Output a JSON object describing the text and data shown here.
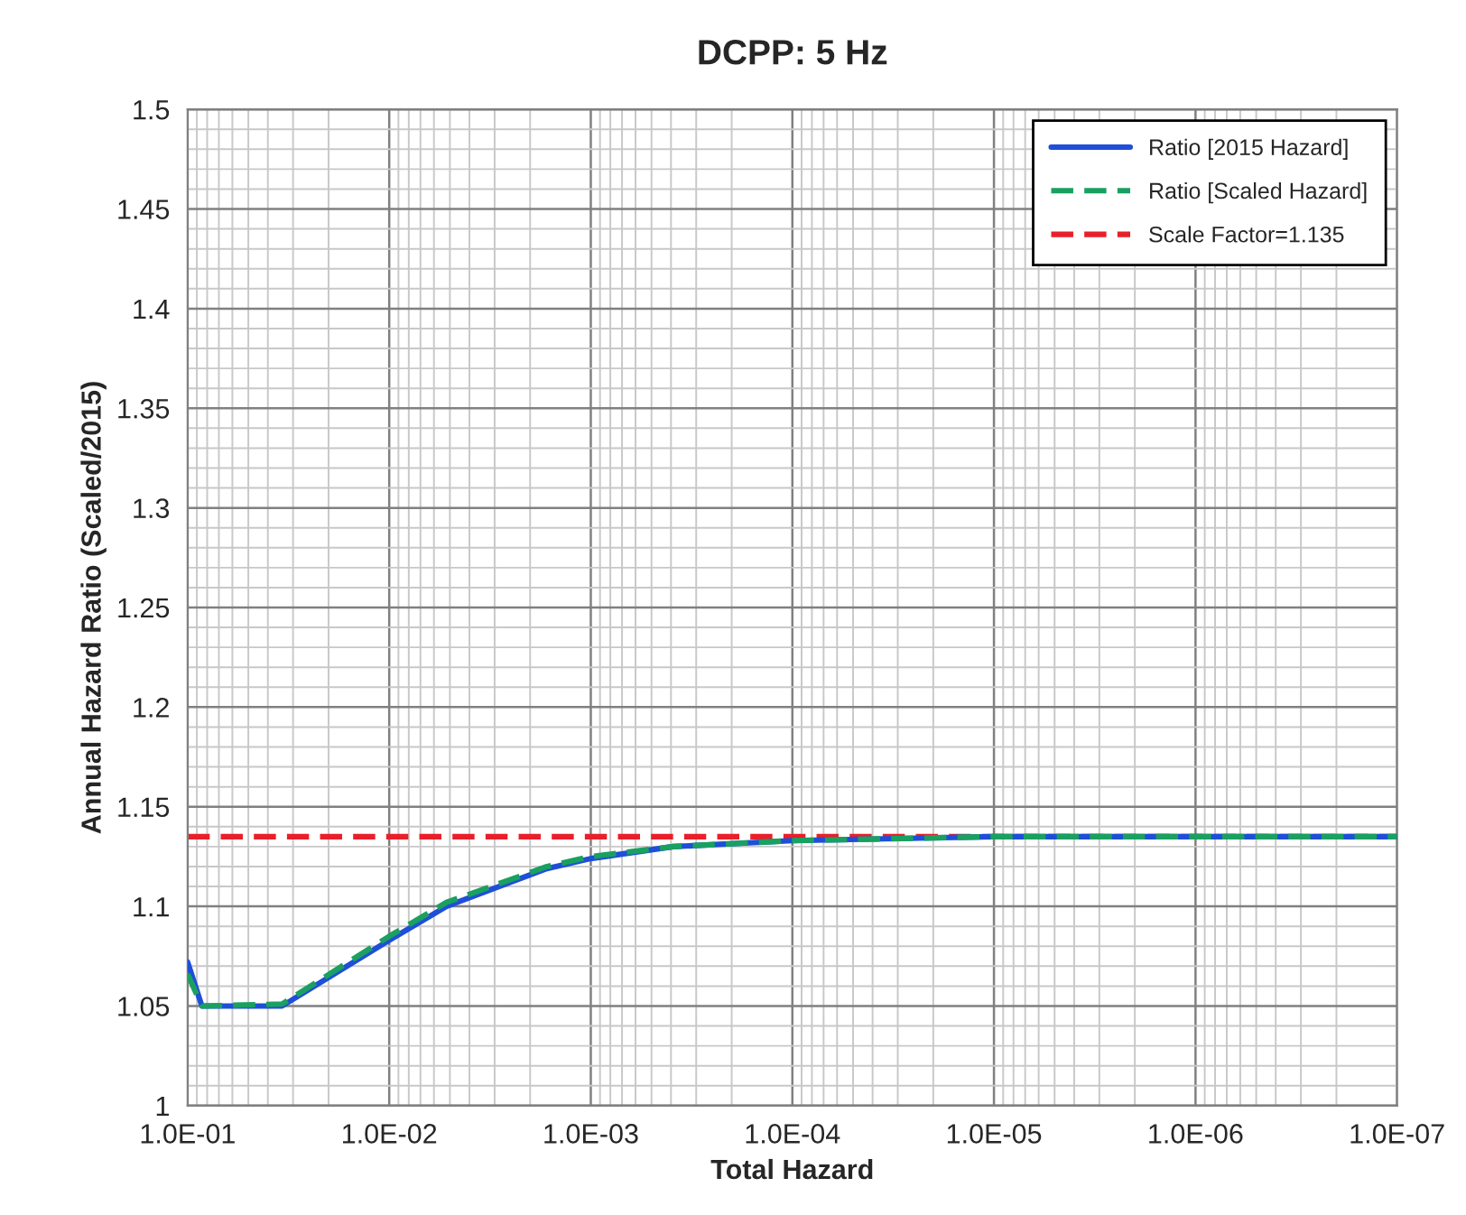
{
  "chart_data": {
    "type": "line",
    "title": "DCPP: 5 Hz",
    "xlabel": "Total Hazard",
    "ylabel": "Annual Hazard Ratio (Scaled/2015)",
    "log": "x",
    "grid": true,
    "legend": "top right",
    "xlim": [
      0.1,
      1e-07
    ],
    "xticks": [
      {
        "value": 0.1,
        "label": "1.0E-01"
      },
      {
        "value": 0.01,
        "label": "1.0E-02"
      },
      {
        "value": 0.001,
        "label": "1.0E-03"
      },
      {
        "value": 0.0001,
        "label": "1.0E-04"
      },
      {
        "value": 1e-05,
        "label": "1.0E-05"
      },
      {
        "value": 1e-06,
        "label": "1.0E-06"
      },
      {
        "value": 1e-07,
        "label": "1.0E-07"
      }
    ],
    "ylim": [
      1,
      1.5
    ],
    "yticks": [
      1,
      1.05,
      1.1,
      1.15,
      1.2,
      1.25,
      1.3,
      1.35,
      1.4,
      1.45,
      1.5
    ],
    "x": [
      0.1,
      0.085,
      0.034,
      0.01,
      0.0052,
      0.00165,
      0.001,
      0.00039,
      0.0001,
      1e-05,
      1e-07
    ],
    "series": [
      {
        "name": "Ratio [2015 Hazard]",
        "color": "#1f4fd8",
        "line_style": "solid",
        "values": [
          1.072,
          1.05,
          1.05,
          1.083,
          1.1,
          1.119,
          1.124,
          1.13,
          1.133,
          1.135,
          1.135
        ]
      },
      {
        "name": "Ratio [Scaled Hazard]",
        "color": "#1aa060",
        "line_style": "dashed",
        "values": [
          1.066,
          1.05,
          1.051,
          1.085,
          1.102,
          1.12,
          1.125,
          1.13,
          1.133,
          1.135,
          1.135
        ]
      }
    ],
    "ref_lines": [
      {
        "axis": "y",
        "value": 1.135,
        "label": "Scale Factor=1.135",
        "color": "#e8202a",
        "line_style": "dashed"
      }
    ]
  }
}
